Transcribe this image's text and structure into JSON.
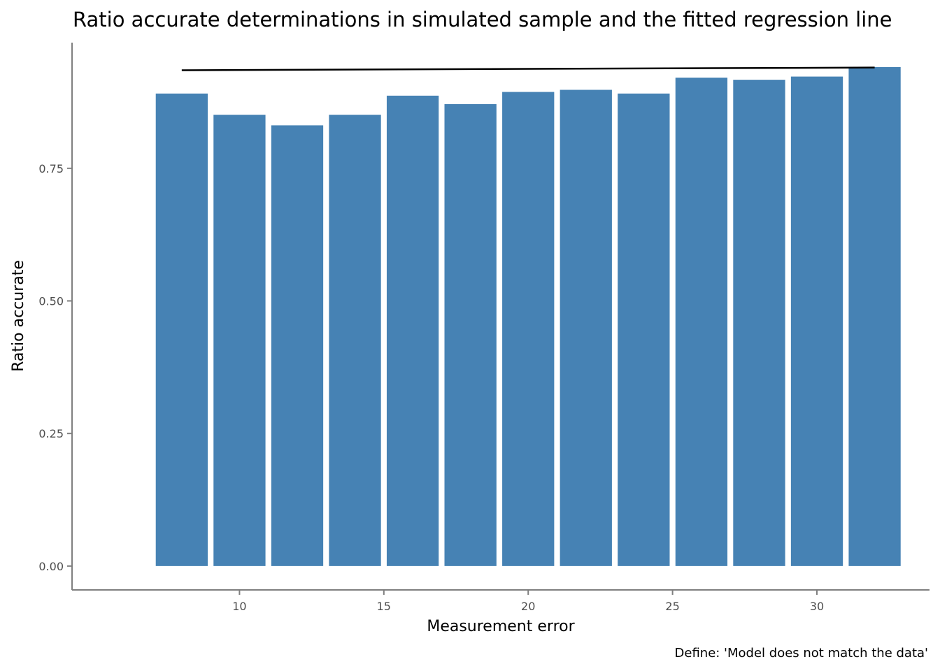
{
  "chart_data": {
    "type": "bar",
    "title": "Ratio accurate determinations in simulated sample and the fitted regression line",
    "xlabel": "Measurement error",
    "ylabel": "Ratio accurate",
    "caption": "Define: 'Model does not match the data'",
    "x": [
      8,
      10,
      12,
      14,
      16,
      18,
      20,
      22,
      24,
      26,
      28,
      30,
      32
    ],
    "values": [
      0.891,
      0.851,
      0.831,
      0.851,
      0.887,
      0.871,
      0.894,
      0.898,
      0.891,
      0.921,
      0.917,
      0.923,
      0.941
    ],
    "bar_width": 1.8,
    "xlim": [
      4.2,
      33.9
    ],
    "ylim": [
      -0.045,
      0.987
    ],
    "x_ticks": [
      10,
      15,
      20,
      25,
      30
    ],
    "x_tick_labels": [
      "10",
      "15",
      "20",
      "25",
      "30"
    ],
    "y_ticks": [
      0.0,
      0.25,
      0.5,
      0.75
    ],
    "y_tick_labels": [
      "0.00",
      "0.25",
      "0.50",
      "0.75"
    ],
    "regression_line": {
      "x": [
        8,
        32
      ],
      "y": [
        0.935,
        0.94
      ]
    },
    "grid": false,
    "legend": "none",
    "colors": {
      "bar": "#4682b4",
      "regression": "#000000",
      "axis": "#7f7f7f"
    }
  }
}
